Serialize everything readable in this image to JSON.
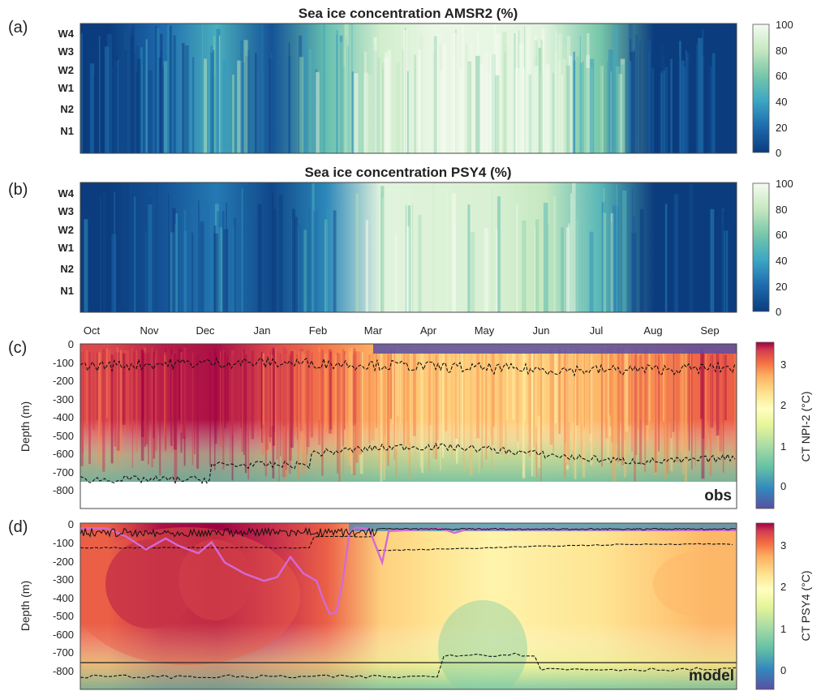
{
  "panels": [
    {
      "id": "a",
      "label": "(a)",
      "title": "Sea ice concentration AMSR2 (%)",
      "y_labels": [
        "W4",
        "W3",
        "W2",
        "W1",
        "N2",
        "N1"
      ],
      "colorbar_ticks": [
        "0",
        "20",
        "40",
        "60",
        "80",
        "100"
      ]
    },
    {
      "id": "b",
      "label": "(b)",
      "title": "Sea ice concentration PSY4 (%)",
      "y_labels": [
        "W4",
        "W3",
        "W2",
        "W1",
        "N2",
        "N1"
      ],
      "colorbar_ticks": [
        "0",
        "20",
        "40",
        "60",
        "80",
        "100"
      ]
    },
    {
      "id": "c",
      "label": "(c)",
      "ylabel": "Depth (m)",
      "colorbar_label": "CT NPI-2 (°C)",
      "colorbar_ticks": [
        "0",
        "1",
        "2",
        "3"
      ],
      "tag": "obs"
    },
    {
      "id": "d",
      "label": "(d)",
      "ylabel": "Depth (m)",
      "colorbar_label": "CT PSY4 (°C)",
      "colorbar_ticks": [
        "0",
        "1",
        "2",
        "3"
      ],
      "tag": "model"
    }
  ],
  "chart_data": [
    {
      "type": "heatmap",
      "title": "Sea ice concentration AMSR2 (%)",
      "y_categories": [
        "W4",
        "W3",
        "W2",
        "W1",
        "N2",
        "N1"
      ],
      "x_months": [
        "Oct",
        "Nov",
        "Dec",
        "Jan",
        "Feb",
        "Mar",
        "Apr",
        "May",
        "Jun",
        "Jul",
        "Aug",
        "Sep"
      ],
      "colorbar_range": [
        0,
        100
      ],
      "ice_concentration_by_month_pct": [
        0,
        20,
        45,
        10,
        55,
        85,
        96,
        95,
        92,
        60,
        0,
        0
      ]
    },
    {
      "type": "heatmap",
      "title": "Sea ice concentration PSY4 (%)",
      "y_categories": [
        "W4",
        "W3",
        "W2",
        "W1",
        "N2",
        "N1"
      ],
      "x_months": [
        "Oct",
        "Nov",
        "Dec",
        "Jan",
        "Feb",
        "Mar",
        "Apr",
        "May",
        "Jun",
        "Jul",
        "Aug",
        "Sep"
      ],
      "colorbar_range": [
        0,
        100
      ],
      "ice_concentration_by_month_pct": [
        0,
        10,
        25,
        5,
        30,
        92,
        90,
        88,
        80,
        50,
        0,
        0
      ]
    },
    {
      "type": "heatmap",
      "ylabel": "Depth (m)",
      "colorbar_label": "CT NPI-2 (°C)",
      "colorbar_range": [
        -0.6,
        3.5
      ],
      "y_ticks": [
        0,
        -100,
        -200,
        -300,
        -400,
        -500,
        -600,
        -700,
        -800
      ],
      "x_months": [
        "Oct",
        "Nov",
        "Dec",
        "Jan",
        "Feb",
        "Mar",
        "Apr",
        "May",
        "Jun",
        "Jul",
        "Aug",
        "Sep"
      ],
      "max_temperature_by_month": [
        3.0,
        3.3,
        3.4,
        3.0,
        2.6,
        2.2,
        2.0,
        2.0,
        2.0,
        2.2,
        2.5,
        2.8
      ],
      "obs_max_depth_m": -750
    },
    {
      "type": "heatmap",
      "ylabel": "Depth (m)",
      "colorbar_label": "CT PSY4 (°C)",
      "colorbar_range": [
        -0.6,
        3.5
      ],
      "y_ticks": [
        0,
        -100,
        -200,
        -300,
        -400,
        -500,
        -600,
        -700,
        -800
      ],
      "x_months": [
        "Oct",
        "Nov",
        "Dec",
        "Jan",
        "Feb",
        "Mar",
        "Apr",
        "May",
        "Jun",
        "Jul",
        "Aug",
        "Sep"
      ],
      "max_temperature_by_month": [
        2.8,
        3.4,
        3.5,
        3.2,
        2.8,
        2.0,
        1.8,
        1.6,
        1.7,
        1.8,
        2.0,
        2.2
      ]
    }
  ],
  "x_axis": {
    "months": [
      "Oct",
      "Nov",
      "Dec",
      "Jan",
      "Feb",
      "Mar",
      "Apr",
      "May",
      "Jun",
      "Jul",
      "Aug",
      "Sep"
    ]
  },
  "depth_ticks": [
    "0",
    "-100",
    "-200",
    "-300",
    "-400",
    "-500",
    "-600",
    "-700",
    "-800"
  ],
  "colors": {
    "ice_low": "#0b3c7e",
    "ice_high": "#f4fbf0",
    "temp_cold": "#5a4fa2",
    "temp_mid": "#ffffbf",
    "temp_hot": "#9e0142",
    "mixed_layer_line": "#d469d6"
  }
}
